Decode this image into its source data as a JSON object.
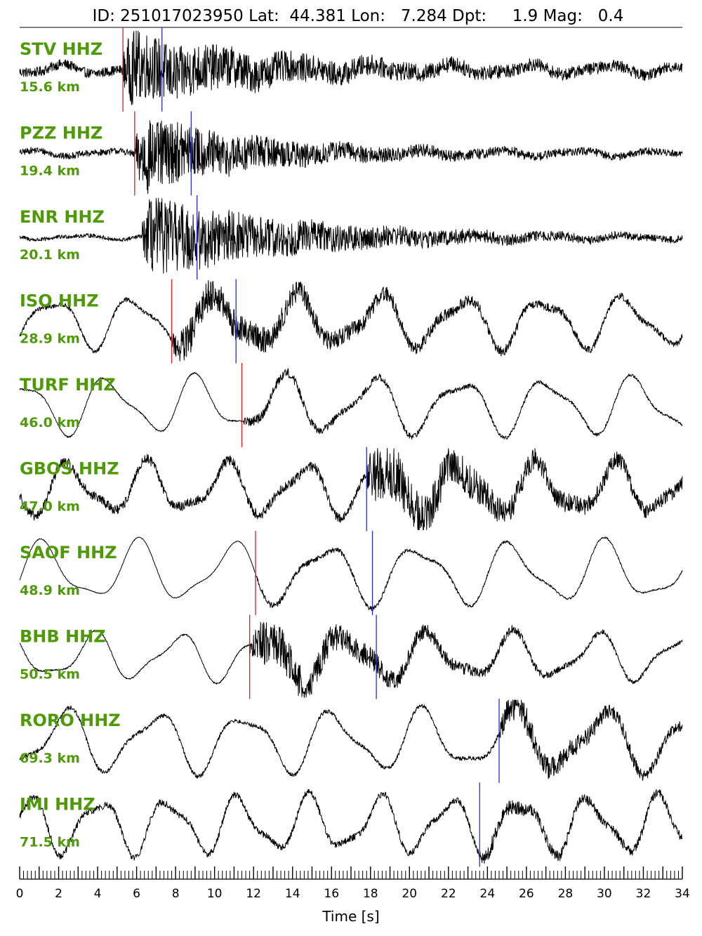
{
  "header": {
    "title": "ID: 251017023950 Lat:  44.381 Lon:   7.284 Dpt:     1.9 Mag:   0.4"
  },
  "colors": {
    "label": "#4e9a06",
    "trace": "#000000",
    "p_pick": "#e31a1c",
    "s_pick": "#1f31d4"
  },
  "chart_data": {
    "type": "line",
    "xlabel": "Time [s]",
    "xlim": [
      0,
      34
    ],
    "x_ticks": [
      0,
      2,
      4,
      6,
      8,
      10,
      12,
      14,
      16,
      18,
      20,
      22,
      24,
      26,
      28,
      30,
      32,
      34
    ],
    "minor_tick_step": 0.2,
    "stations": [
      {
        "name": "STV HHZ",
        "distance": "15.6 km",
        "p_pick": 5.3,
        "s_pick": 7.3,
        "onset": 5.3,
        "noise_amp": 0.12,
        "signal_amp": 0.85,
        "decay": 7,
        "low_amp": 0.1,
        "low_period": 4
      },
      {
        "name": "PZZ HHZ",
        "distance": "19.4 km",
        "p_pick": 5.9,
        "s_pick": 8.8,
        "onset": 5.9,
        "noise_amp": 0.08,
        "signal_amp": 0.95,
        "decay": 6,
        "low_amp": 0.06,
        "low_period": 4
      },
      {
        "name": "ENR HHZ",
        "distance": "20.1 km",
        "p_pick": null,
        "s_pick": 9.1,
        "onset": 6.3,
        "noise_amp": 0.05,
        "signal_amp": 1.0,
        "decay": 8,
        "low_amp": 0.05,
        "low_period": 4
      },
      {
        "name": "ISO HHZ",
        "distance": "28.9 km",
        "p_pick": 7.8,
        "s_pick": 11.1,
        "onset": 7.8,
        "noise_amp": 0.05,
        "signal_amp": 0.45,
        "decay": 9,
        "low_amp": 0.55,
        "low_period": 4.2
      },
      {
        "name": "TURF HHZ",
        "distance": "46.0 km",
        "p_pick": 11.4,
        "s_pick": null,
        "onset": 11.4,
        "noise_amp": 0.02,
        "signal_amp": 0.12,
        "decay": 10,
        "low_amp": 0.6,
        "low_period": 4.5
      },
      {
        "name": "GBOS HHZ",
        "distance": "47.0 km",
        "p_pick": null,
        "s_pick": 17.8,
        "onset": 17.8,
        "noise_amp": 0.12,
        "signal_amp": 0.7,
        "decay": 6,
        "low_amp": 0.55,
        "low_period": 4.0
      },
      {
        "name": "SAOF HHZ",
        "distance": "48.9 km",
        "p_pick": 12.1,
        "s_pick": 18.1,
        "onset": 12.1,
        "noise_amp": 0.01,
        "signal_amp": 0.08,
        "decay": 10,
        "low_amp": 0.65,
        "low_period": 4.8
      },
      {
        "name": "BHB HHZ",
        "distance": "50.5 km",
        "p_pick": 11.8,
        "s_pick": 18.3,
        "onset": 11.8,
        "noise_amp": 0.02,
        "signal_amp": 0.6,
        "decay": 7,
        "low_amp": 0.5,
        "low_period": 4.3
      },
      {
        "name": "RORO HHZ",
        "distance": "69.3 km",
        "p_pick": null,
        "s_pick": 24.6,
        "onset": 24.6,
        "noise_amp": 0.05,
        "signal_amp": 0.35,
        "decay": 6,
        "low_amp": 0.65,
        "low_period": 4.6
      },
      {
        "name": "IMI HHZ",
        "distance": "71.5 km",
        "p_pick": null,
        "s_pick": 23.6,
        "onset": 23.6,
        "noise_amp": 0.08,
        "signal_amp": 0.12,
        "decay": 6,
        "low_amp": 0.6,
        "low_period": 3.6
      }
    ]
  }
}
